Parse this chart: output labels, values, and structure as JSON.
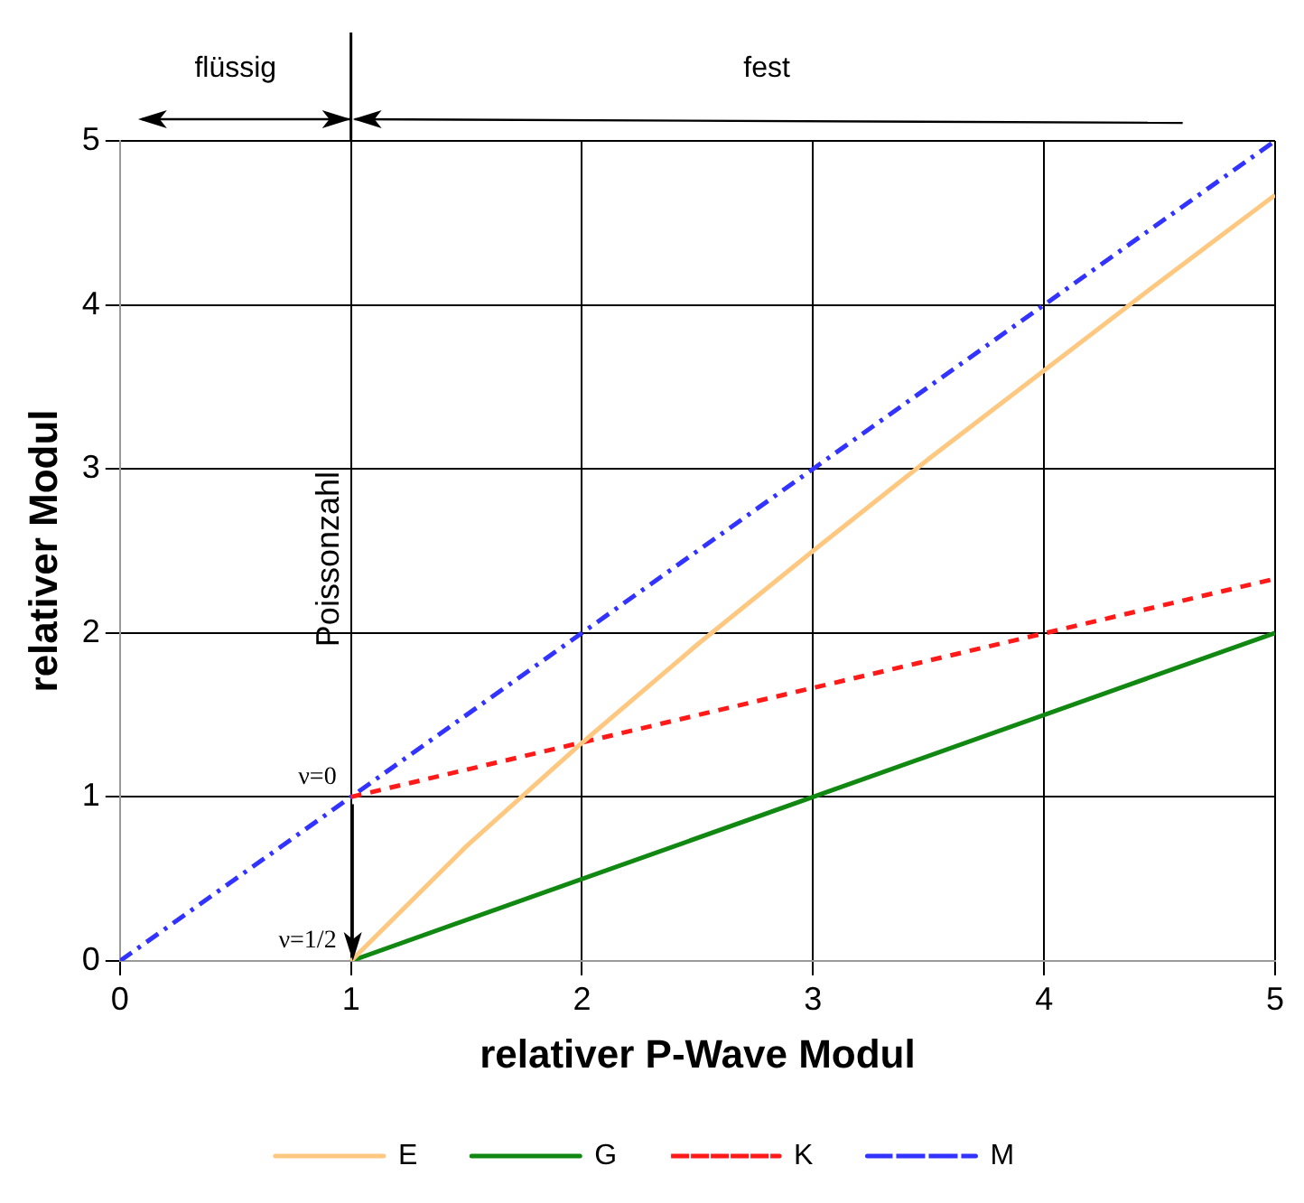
{
  "chart_data": {
    "type": "line",
    "xlabel": "relativer P-Wave Modul",
    "ylabel": "relativer Modul",
    "x": [
      1,
      1.5,
      2,
      2.5,
      3,
      3.5,
      4,
      4.5,
      5
    ],
    "series": [
      {
        "name": "E",
        "color": "#ffc880",
        "line_style": "solid",
        "values": [
          0,
          0.7,
          1.33,
          1.93,
          2.5,
          3.06,
          3.6,
          4.14,
          4.67
        ]
      },
      {
        "name": "G",
        "color": "#118811",
        "line_style": "solid",
        "x": [
          1,
          5
        ],
        "values": [
          0,
          2
        ]
      },
      {
        "name": "K",
        "color": "#ff1a1a",
        "line_style": "dashed",
        "x": [
          1,
          5
        ],
        "values": [
          1,
          2.33
        ]
      },
      {
        "name": "M",
        "color": "#3333ff",
        "line_style": "dashdot",
        "x": [
          0,
          5
        ],
        "values": [
          0,
          5
        ]
      }
    ],
    "xlim": [
      0,
      5
    ],
    "xticks": [
      0,
      1,
      2,
      3,
      4,
      5
    ],
    "ylim": [
      0,
      5
    ],
    "yticks": [
      0,
      1,
      2,
      3,
      4,
      5
    ],
    "grid": true,
    "legend": "bottom",
    "marker": "none",
    "annotations": [
      "flüssig",
      "fest",
      "Poissonzahl",
      {
        "text": "ν=0",
        "x": 1,
        "y": 1
      },
      {
        "text": "ν=1/2",
        "x": 1,
        "y": 0
      }
    ]
  }
}
